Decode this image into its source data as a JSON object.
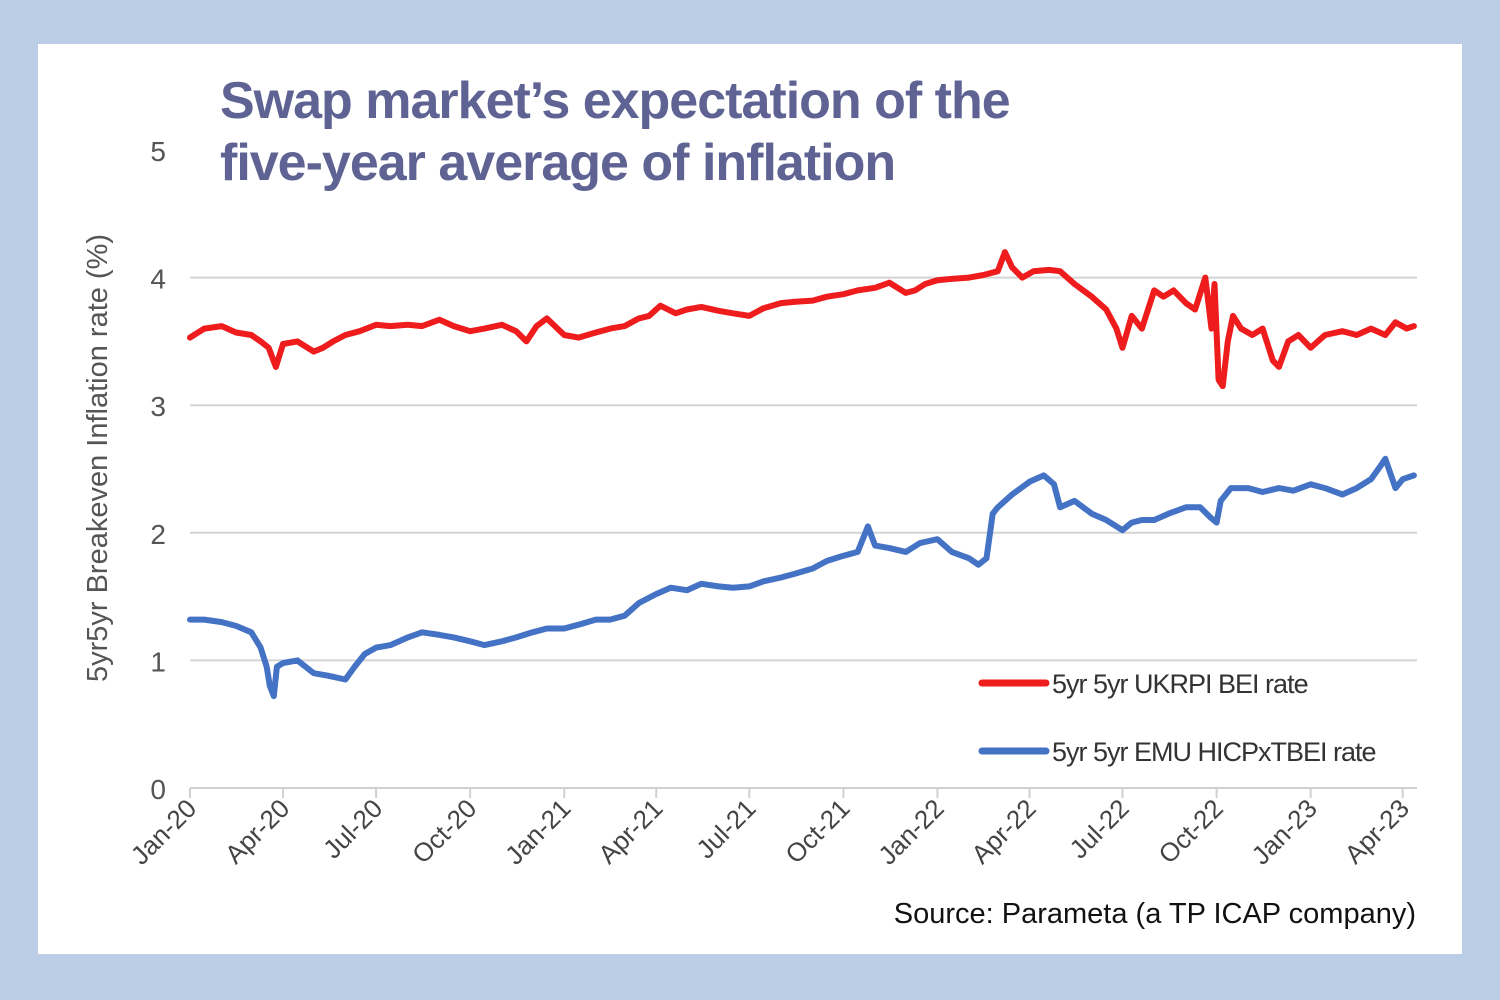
{
  "title_lines": [
    "Swap market’s expectation of the",
    "five-year average of inflation"
  ],
  "source": "Source: Parameta (a TP ICAP company)",
  "chart_data": {
    "type": "line",
    "title": "Swap market’s expectation of the five-year average of inflation",
    "xlabel": "",
    "ylabel": "5yr5yr Breakeven Inflation  rate (%)",
    "ylim": [
      0,
      5
    ],
    "yticks": [
      0,
      1,
      2,
      3,
      4,
      5
    ],
    "grid": "horizontal",
    "legend_position": "bottom-right",
    "xlim": [
      "2020-01-01",
      "2023-04-15"
    ],
    "xticks": [
      "2020-01-01",
      "2020-04-01",
      "2020-07-01",
      "2020-10-01",
      "2021-01-01",
      "2021-04-01",
      "2021-07-01",
      "2021-10-01",
      "2022-01-01",
      "2022-04-01",
      "2022-07-01",
      "2022-10-01",
      "2023-01-01",
      "2023-04-01"
    ],
    "xtick_labels": [
      "Jan-20",
      "Apr-20",
      "Jul-20",
      "Oct-20",
      "Jan-21",
      "Apr-21",
      "Jul-21",
      "Oct-21",
      "Jan-22",
      "Apr-22",
      "Jul-22",
      "Oct-22",
      "Jan-23",
      "Apr-23"
    ],
    "series": [
      {
        "name": "5yr 5yr UKRPI BEI rate",
        "color": "#ee1c1c",
        "x": [
          "2020-01-01",
          "2020-01-15",
          "2020-02-01",
          "2020-02-15",
          "2020-03-01",
          "2020-03-10",
          "2020-03-18",
          "2020-03-25",
          "2020-04-01",
          "2020-04-15",
          "2020-05-01",
          "2020-05-10",
          "2020-05-20",
          "2020-06-01",
          "2020-06-15",
          "2020-07-01",
          "2020-07-15",
          "2020-08-01",
          "2020-08-15",
          "2020-09-01",
          "2020-09-15",
          "2020-10-01",
          "2020-10-15",
          "2020-11-01",
          "2020-11-15",
          "2020-11-25",
          "2020-12-05",
          "2020-12-15",
          "2021-01-01",
          "2021-01-15",
          "2021-02-01",
          "2021-02-15",
          "2021-03-01",
          "2021-03-15",
          "2021-03-25",
          "2021-04-05",
          "2021-04-20",
          "2021-05-01",
          "2021-05-15",
          "2021-06-01",
          "2021-06-15",
          "2021-07-01",
          "2021-07-15",
          "2021-08-01",
          "2021-08-15",
          "2021-09-01",
          "2021-09-15",
          "2021-10-01",
          "2021-10-15",
          "2021-11-01",
          "2021-11-15",
          "2021-12-01",
          "2021-12-10",
          "2021-12-20",
          "2022-01-01",
          "2022-01-15",
          "2022-02-01",
          "2022-02-15",
          "2022-03-01",
          "2022-03-08",
          "2022-03-15",
          "2022-03-25",
          "2022-04-05",
          "2022-04-20",
          "2022-05-01",
          "2022-05-15",
          "2022-06-01",
          "2022-06-15",
          "2022-06-25",
          "2022-07-01",
          "2022-07-10",
          "2022-07-20",
          "2022-08-01",
          "2022-08-10",
          "2022-08-20",
          "2022-09-01",
          "2022-09-10",
          "2022-09-20",
          "2022-09-26",
          "2022-09-29",
          "2022-10-03",
          "2022-10-07",
          "2022-10-12",
          "2022-10-17",
          "2022-10-25",
          "2022-11-05",
          "2022-11-15",
          "2022-11-25",
          "2022-12-01",
          "2022-12-10",
          "2022-12-20",
          "2023-01-01",
          "2023-01-15",
          "2023-02-01",
          "2023-02-15",
          "2023-03-01",
          "2023-03-15",
          "2023-03-25",
          "2023-04-05",
          "2023-04-12"
        ],
        "values": [
          3.53,
          3.6,
          3.62,
          3.57,
          3.55,
          3.5,
          3.45,
          3.3,
          3.48,
          3.5,
          3.42,
          3.45,
          3.5,
          3.55,
          3.58,
          3.63,
          3.62,
          3.63,
          3.62,
          3.67,
          3.62,
          3.58,
          3.6,
          3.63,
          3.58,
          3.5,
          3.62,
          3.68,
          3.55,
          3.53,
          3.57,
          3.6,
          3.62,
          3.68,
          3.7,
          3.78,
          3.72,
          3.75,
          3.77,
          3.74,
          3.72,
          3.7,
          3.76,
          3.8,
          3.81,
          3.82,
          3.85,
          3.87,
          3.9,
          3.92,
          3.96,
          3.88,
          3.9,
          3.95,
          3.98,
          3.99,
          4.0,
          4.02,
          4.05,
          4.2,
          4.08,
          4.0,
          4.05,
          4.06,
          4.05,
          3.95,
          3.85,
          3.75,
          3.6,
          3.45,
          3.7,
          3.6,
          3.9,
          3.85,
          3.9,
          3.8,
          3.75,
          4.0,
          3.6,
          3.95,
          3.2,
          3.15,
          3.5,
          3.7,
          3.6,
          3.55,
          3.6,
          3.35,
          3.3,
          3.5,
          3.55,
          3.45,
          3.55,
          3.58,
          3.55,
          3.6,
          3.55,
          3.65,
          3.6,
          3.62
        ]
      },
      {
        "name": "5yr 5yr EMU HICPxTBEI rate",
        "color": "#4472c4",
        "x": [
          "2020-01-01",
          "2020-01-15",
          "2020-02-01",
          "2020-02-15",
          "2020-03-01",
          "2020-03-10",
          "2020-03-16",
          "2020-03-19",
          "2020-03-23",
          "2020-03-26",
          "2020-04-01",
          "2020-04-15",
          "2020-05-01",
          "2020-05-15",
          "2020-06-01",
          "2020-06-10",
          "2020-06-20",
          "2020-07-01",
          "2020-07-15",
          "2020-08-01",
          "2020-08-15",
          "2020-09-01",
          "2020-09-15",
          "2020-10-01",
          "2020-10-15",
          "2020-11-01",
          "2020-11-15",
          "2020-12-01",
          "2020-12-15",
          "2021-01-01",
          "2021-01-15",
          "2021-02-01",
          "2021-02-15",
          "2021-03-01",
          "2021-03-15",
          "2021-04-01",
          "2021-04-15",
          "2021-05-01",
          "2021-05-15",
          "2021-06-01",
          "2021-06-15",
          "2021-07-01",
          "2021-07-15",
          "2021-08-01",
          "2021-08-15",
          "2021-09-01",
          "2021-09-15",
          "2021-10-01",
          "2021-10-15",
          "2021-10-25",
          "2021-11-01",
          "2021-11-15",
          "2021-12-01",
          "2021-12-15",
          "2022-01-01",
          "2022-01-15",
          "2022-02-01",
          "2022-02-10",
          "2022-02-18",
          "2022-02-24",
          "2022-03-01",
          "2022-03-15",
          "2022-04-01",
          "2022-04-15",
          "2022-04-25",
          "2022-05-01",
          "2022-05-15",
          "2022-06-01",
          "2022-06-15",
          "2022-07-01",
          "2022-07-10",
          "2022-07-20",
          "2022-08-01",
          "2022-08-15",
          "2022-09-01",
          "2022-09-15",
          "2022-09-25",
          "2022-10-01",
          "2022-10-05",
          "2022-10-15",
          "2022-11-01",
          "2022-11-15",
          "2022-12-01",
          "2022-12-15",
          "2023-01-01",
          "2023-01-15",
          "2023-02-01",
          "2023-02-15",
          "2023-03-01",
          "2023-03-10",
          "2023-03-15",
          "2023-03-25",
          "2023-04-01",
          "2023-04-12"
        ],
        "values": [
          1.32,
          1.32,
          1.3,
          1.27,
          1.22,
          1.1,
          0.95,
          0.8,
          0.72,
          0.95,
          0.98,
          1.0,
          0.9,
          0.88,
          0.85,
          0.95,
          1.05,
          1.1,
          1.12,
          1.18,
          1.22,
          1.2,
          1.18,
          1.15,
          1.12,
          1.15,
          1.18,
          1.22,
          1.25,
          1.25,
          1.28,
          1.32,
          1.32,
          1.35,
          1.45,
          1.52,
          1.57,
          1.55,
          1.6,
          1.58,
          1.57,
          1.58,
          1.62,
          1.65,
          1.68,
          1.72,
          1.78,
          1.82,
          1.85,
          2.05,
          1.9,
          1.88,
          1.85,
          1.92,
          1.95,
          1.85,
          1.8,
          1.75,
          1.8,
          2.15,
          2.2,
          2.3,
          2.4,
          2.45,
          2.38,
          2.2,
          2.25,
          2.15,
          2.1,
          2.02,
          2.08,
          2.1,
          2.1,
          2.15,
          2.2,
          2.2,
          2.12,
          2.08,
          2.25,
          2.35,
          2.35,
          2.32,
          2.35,
          2.33,
          2.38,
          2.35,
          2.3,
          2.35,
          2.42,
          2.52,
          2.58,
          2.35,
          2.42,
          2.45
        ]
      }
    ]
  }
}
